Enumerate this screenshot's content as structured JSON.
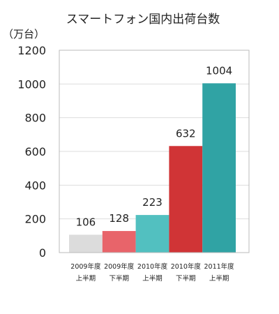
{
  "chart_data": {
    "type": "bar",
    "title": "スマートフォン国内出荷台数",
    "ylabel": "（万台）",
    "categories": [
      [
        "2009年度",
        "上半期"
      ],
      [
        "2009年度",
        "下半期"
      ],
      [
        "2010年度",
        "上半期"
      ],
      [
        "2010年度",
        "下半期"
      ],
      [
        "2011年度",
        "上半期"
      ]
    ],
    "values": [
      106,
      128,
      223,
      632,
      1004
    ],
    "data_labels": [
      "106",
      "128",
      "223",
      "632",
      "1004"
    ],
    "colors": [
      "#dcdcdc",
      "#e8646a",
      "#52c0c0",
      "#d03436",
      "#30a3a4"
    ],
    "ylim": [
      0,
      1200
    ],
    "yticks": [
      0,
      200,
      400,
      600,
      800,
      1000,
      1200
    ],
    "grid": true,
    "legend": "none"
  }
}
